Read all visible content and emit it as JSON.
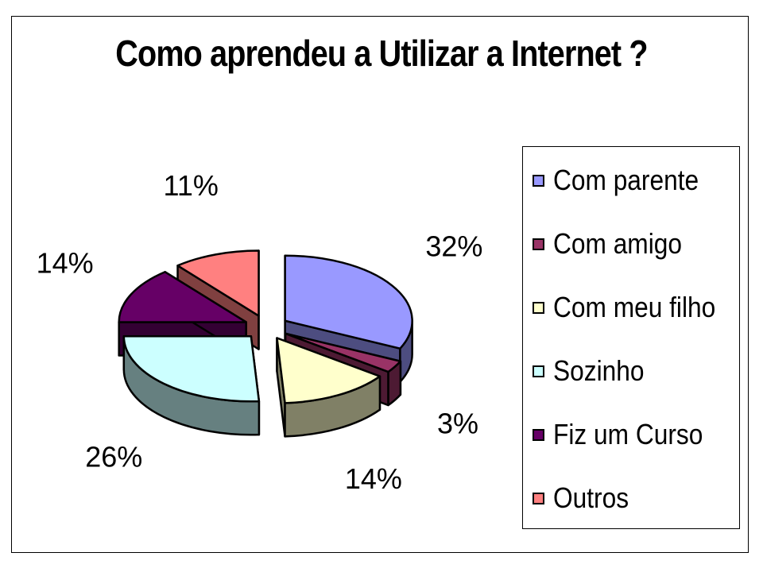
{
  "chart_data": {
    "type": "pie",
    "title": "Como aprendeu a Utilizar a Internet ?",
    "categories": [
      "Com parente",
      "Com amigo",
      "Com meu filho",
      "Sozinho",
      "Fiz um Curso",
      "Outros"
    ],
    "values": [
      32,
      3,
      14,
      26,
      14,
      11
    ],
    "data_labels": [
      "32%",
      "3%",
      "14%",
      "26%",
      "14%",
      "11%"
    ],
    "colors": [
      "#9999ff",
      "#993366",
      "#ffffcc",
      "#ccffff",
      "#660066",
      "#ff8080"
    ],
    "side_colors": [
      "#4d4d80",
      "#4d1a33",
      "#808066",
      "#668080",
      "#330033",
      "#804040"
    ],
    "exploded": true,
    "three_d": true,
    "legend": {
      "position": "right",
      "entries": [
        "Com parente",
        "Com amigo",
        "Com meu filho",
        "Sozinho",
        "Fiz um Curso",
        "Outros"
      ]
    }
  }
}
